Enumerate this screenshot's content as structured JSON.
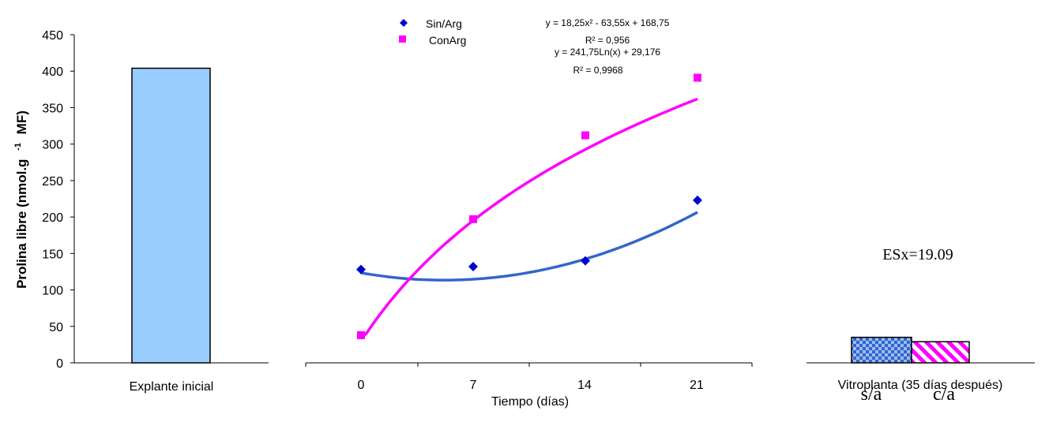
{
  "chart_data": [
    {
      "type": "bar",
      "ylabel": "Prolina libre (nmol.g -1 MF)",
      "ylabel_parts": [
        "Prolina libre (nmol.g",
        "-1",
        "MF)"
      ],
      "ylim": [
        0,
        450
      ],
      "yticks": [
        "0",
        "50",
        "100",
        "150",
        "200",
        "250",
        "300",
        "350",
        "400",
        "450"
      ],
      "categories": [
        "Explante inicial"
      ],
      "values": [
        404
      ],
      "colors": [
        "#99ccff"
      ]
    },
    {
      "type": "scatter",
      "xlabel": "Tiempo (días)",
      "xticks": [
        "0",
        "7",
        "14",
        "21"
      ],
      "ylim": [
        0,
        450
      ],
      "series": [
        {
          "name": "Sin/Arg",
          "marker": "diamond",
          "color": "#0000cc",
          "x": [
            0,
            7,
            14,
            21
          ],
          "y": [
            128,
            132,
            140,
            223
          ],
          "trend": {
            "kind": "poly2",
            "a": 18.25,
            "b": -63.55,
            "c": 168.75,
            "color": "#3366cc"
          },
          "equation": "y = 18,25x² - 63,55x + 168,75",
          "r2": "R² = 0,956"
        },
        {
          "name": "ConArg",
          "marker": "square",
          "color": "#ff00ff",
          "x": [
            0,
            7,
            14,
            21
          ],
          "y": [
            38,
            197,
            312,
            391
          ],
          "trend": {
            "kind": "log",
            "a": 241.75,
            "b": 29.176,
            "color": "#ff00ff"
          },
          "equation": "y = 241,75Ln(x) + 29,176",
          "r2": "R² = 0,9968"
        }
      ]
    },
    {
      "type": "bar",
      "xlabel": "Vitroplanta (35 días después)",
      "annotation": "ESx=19.09",
      "ylim": [
        0,
        450
      ],
      "bottom_labels": [
        "s/a",
        "c/a"
      ],
      "values": [
        35,
        29
      ],
      "colors": [
        "#3366cc",
        "#ff00ff"
      ],
      "patterns": [
        "checker",
        "diagonal-stripes"
      ]
    }
  ]
}
